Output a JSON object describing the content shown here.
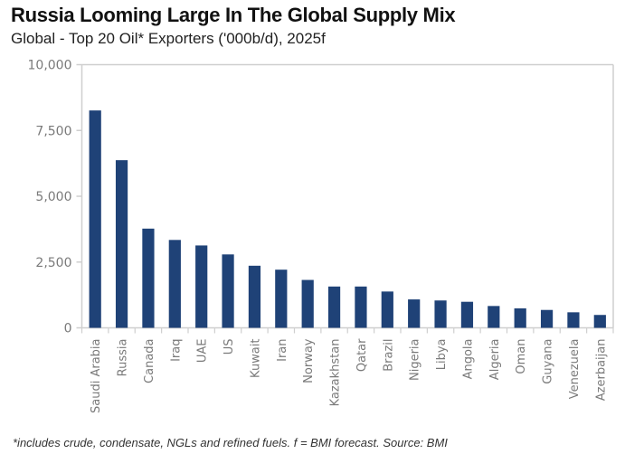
{
  "header": {
    "title": "Russia Looming Large In The Global Supply Mix",
    "subtitle": "Global - Top 20 Oil* Exporters ('000b/d), 2025f"
  },
  "footnote": "*includes crude, condensate, NGLs and refined fuels. f = BMI forecast. Source: BMI",
  "colors": {
    "bar": "#1f4277",
    "axis": "#cfcfcf",
    "tick_text": "#7a7a7a"
  },
  "chart_data": {
    "type": "bar",
    "title": "Russia Looming Large In The Global Supply Mix",
    "subtitle": "Global - Top 20 Oil* Exporters ('000b/d), 2025f",
    "xlabel": "",
    "ylabel": "",
    "ylim": [
      0,
      10000
    ],
    "yticks": [
      0,
      2500,
      5000,
      7500,
      10000
    ],
    "ytick_labels": [
      "0",
      "2,500",
      "5,000",
      "7,500",
      "10,000"
    ],
    "grid": false,
    "legend": "none",
    "categories": [
      "Saudi Arabia",
      "Russia",
      "Canada",
      "Iraq",
      "UAE",
      "US",
      "Kuwait",
      "Iran",
      "Norway",
      "Kazakhstan",
      "Qatar",
      "Brazil",
      "Nigeria",
      "Libya",
      "Angola",
      "Algeria",
      "Oman",
      "Guyana",
      "Venezuela",
      "Azerbaijan"
    ],
    "values": [
      8260,
      6370,
      3770,
      3340,
      3130,
      2790,
      2360,
      2210,
      1820,
      1570,
      1570,
      1380,
      1080,
      1040,
      990,
      830,
      740,
      680,
      590,
      490
    ]
  }
}
